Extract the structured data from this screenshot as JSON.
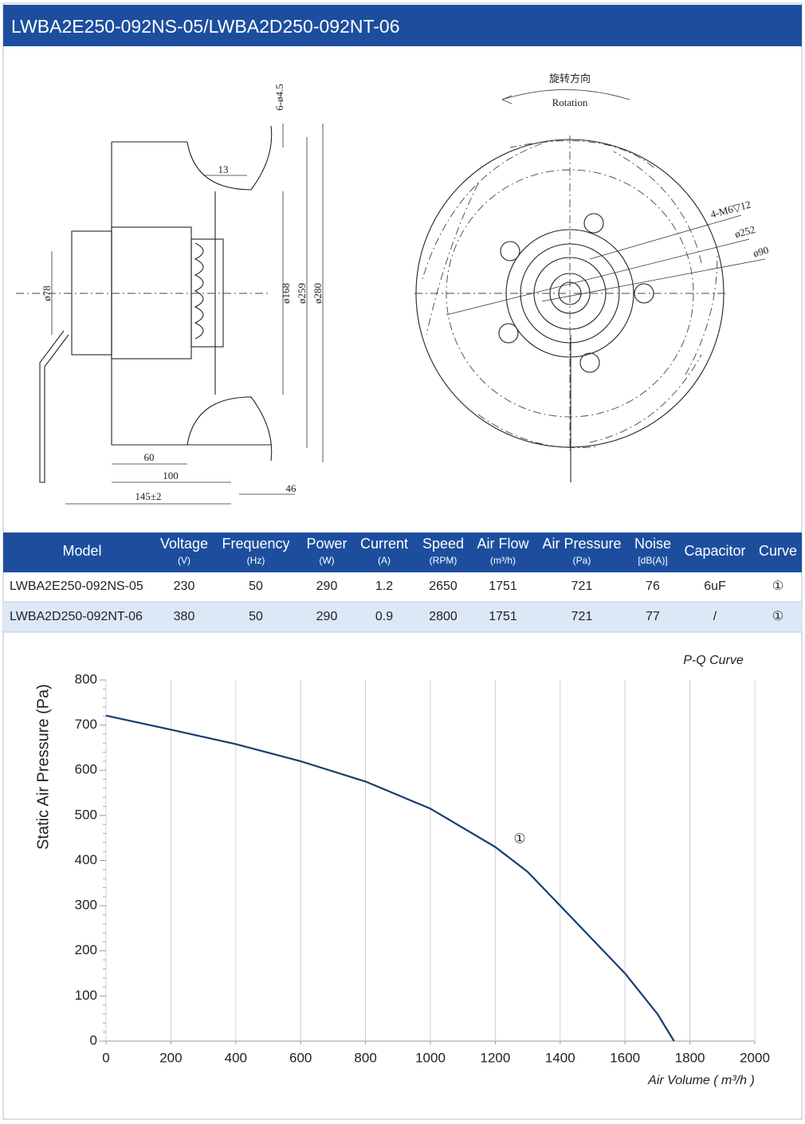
{
  "header": {
    "title": "LWBA2E250-092NS-05/LWBA2D250-092NT-06"
  },
  "drawing": {
    "side_labels": [
      "6-ø4.5",
      "13",
      "ø78",
      "ø168",
      "ø259",
      "ø280",
      "60",
      "100",
      "145±2",
      "46"
    ],
    "rotation_cn": "旋转方向",
    "rotation_en": "Rotation",
    "front_labels": [
      "4-M6▽12",
      "ø252",
      "ø90"
    ]
  },
  "table": {
    "columns": [
      {
        "name": "Model"
      },
      {
        "name": "Voltage",
        "unit": "(V)"
      },
      {
        "name": "Frequency",
        "unit": "(Hz)"
      },
      {
        "name": "Power",
        "unit": "(W)"
      },
      {
        "name": "Current",
        "unit": "(A)"
      },
      {
        "name": "Speed",
        "unit": "(RPM)"
      },
      {
        "name": "Air Flow",
        "unit": "(m³/h)"
      },
      {
        "name": "Air Pressure",
        "unit": "(Pa)"
      },
      {
        "name": "Noise",
        "unit": "[dB(A)]"
      },
      {
        "name": "Capacitor"
      },
      {
        "name": "Curve"
      }
    ],
    "rows": [
      [
        "LWBA2E250-092NS-05",
        "230",
        "50",
        "290",
        "1.2",
        "2650",
        "1751",
        "721",
        "76",
        "6uF",
        "①"
      ],
      [
        "LWBA2D250-092NT-06",
        "380",
        "50",
        "290",
        "0.9",
        "2800",
        "1751",
        "721",
        "77",
        "/",
        "①"
      ]
    ]
  },
  "chart_data": {
    "type": "line",
    "title": "P-Q Curve",
    "x_label": "Air Volume ( m³/h )",
    "y_label": "Static Air Pressure  (Pa)",
    "annotation": "①",
    "x": [
      0,
      200,
      400,
      600,
      800,
      1000,
      1200,
      1300,
      1400,
      1500,
      1600,
      1700,
      1751
    ],
    "series": [
      {
        "name": "①",
        "color": "#163e6e",
        "values": [
          721,
          690,
          658,
          620,
          575,
          515,
          430,
          375,
          300,
          225,
          150,
          60,
          0
        ]
      }
    ],
    "xlim": [
      0,
      2000
    ],
    "ylim": [
      0,
      800
    ],
    "xticks": [
      0,
      200,
      400,
      600,
      800,
      1000,
      1200,
      1400,
      1600,
      1800,
      2000
    ],
    "yticks": [
      0,
      100,
      200,
      300,
      400,
      500,
      600,
      700,
      800
    ],
    "grid": "x"
  }
}
